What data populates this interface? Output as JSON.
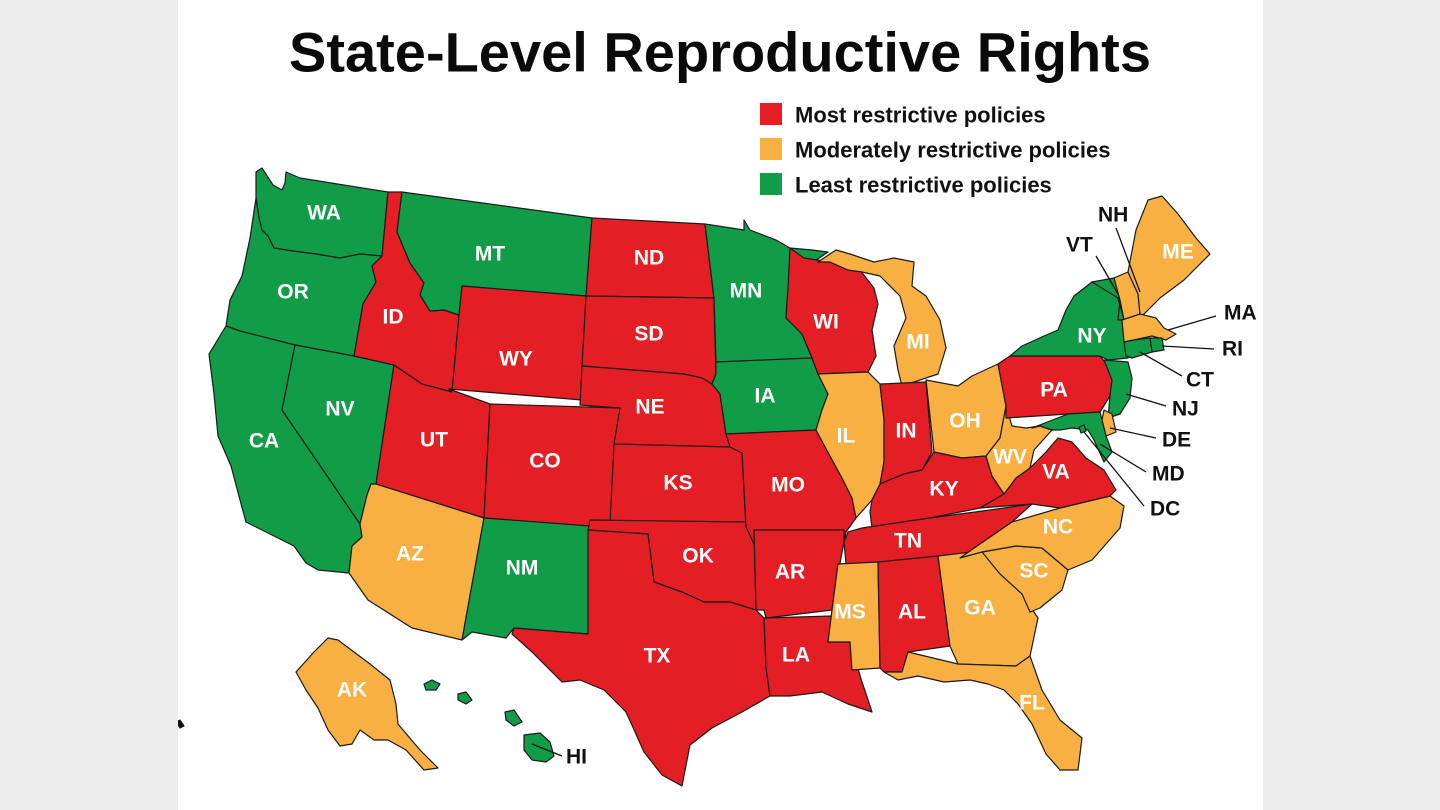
{
  "title": "State-Level Reproductive Rights",
  "colors": {
    "most": "#e31e24",
    "moderate": "#f8b043",
    "least": "#119d48"
  },
  "legend": [
    {
      "category": "most",
      "label": "Most restrictive policies"
    },
    {
      "category": "moderate",
      "label": "Moderately restrictive policies"
    },
    {
      "category": "least",
      "label": "Least restrictive policies"
    }
  ],
  "states": [
    {
      "code": "WA",
      "category": "least"
    },
    {
      "code": "OR",
      "category": "least"
    },
    {
      "code": "CA",
      "category": "least"
    },
    {
      "code": "NV",
      "category": "least"
    },
    {
      "code": "ID",
      "category": "most"
    },
    {
      "code": "MT",
      "category": "least"
    },
    {
      "code": "WY",
      "category": "most"
    },
    {
      "code": "UT",
      "category": "most"
    },
    {
      "code": "CO",
      "category": "most"
    },
    {
      "code": "AZ",
      "category": "moderate"
    },
    {
      "code": "NM",
      "category": "least"
    },
    {
      "code": "ND",
      "category": "most"
    },
    {
      "code": "SD",
      "category": "most"
    },
    {
      "code": "NE",
      "category": "most"
    },
    {
      "code": "KS",
      "category": "most"
    },
    {
      "code": "OK",
      "category": "most"
    },
    {
      "code": "TX",
      "category": "most"
    },
    {
      "code": "MN",
      "category": "least"
    },
    {
      "code": "IA",
      "category": "least"
    },
    {
      "code": "MO",
      "category": "most"
    },
    {
      "code": "AR",
      "category": "most"
    },
    {
      "code": "LA",
      "category": "most"
    },
    {
      "code": "WI",
      "category": "most"
    },
    {
      "code": "IL",
      "category": "moderate"
    },
    {
      "code": "MI",
      "category": "moderate"
    },
    {
      "code": "IN",
      "category": "most"
    },
    {
      "code": "OH",
      "category": "moderate"
    },
    {
      "code": "KY",
      "category": "most"
    },
    {
      "code": "TN",
      "category": "most"
    },
    {
      "code": "MS",
      "category": "moderate"
    },
    {
      "code": "AL",
      "category": "most"
    },
    {
      "code": "GA",
      "category": "moderate"
    },
    {
      "code": "FL",
      "category": "moderate"
    },
    {
      "code": "SC",
      "category": "moderate"
    },
    {
      "code": "NC",
      "category": "moderate"
    },
    {
      "code": "VA",
      "category": "most"
    },
    {
      "code": "WV",
      "category": "moderate"
    },
    {
      "code": "PA",
      "category": "most"
    },
    {
      "code": "NY",
      "category": "least"
    },
    {
      "code": "VT",
      "category": "least"
    },
    {
      "code": "NH",
      "category": "moderate"
    },
    {
      "code": "ME",
      "category": "moderate"
    },
    {
      "code": "MA",
      "category": "moderate"
    },
    {
      "code": "RI",
      "category": "least"
    },
    {
      "code": "CT",
      "category": "least"
    },
    {
      "code": "NJ",
      "category": "least"
    },
    {
      "code": "DE",
      "category": "moderate"
    },
    {
      "code": "MD",
      "category": "least"
    },
    {
      "code": "DC",
      "category": "least"
    },
    {
      "code": "AK",
      "category": "moderate"
    },
    {
      "code": "HI",
      "category": "least"
    }
  ]
}
